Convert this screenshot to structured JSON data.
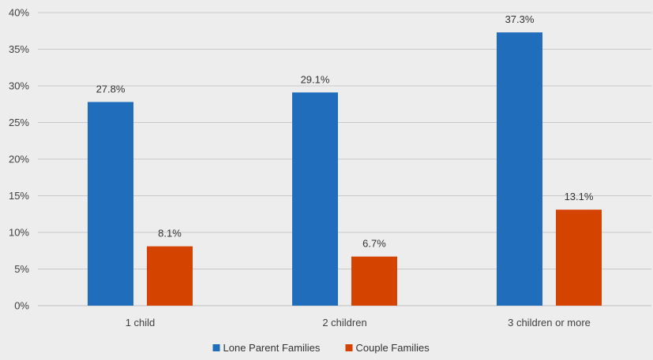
{
  "chart_data": {
    "type": "bar",
    "title": "",
    "xlabel": "",
    "ylabel": "",
    "categories": [
      "1 child",
      "2 children",
      "3 children or more"
    ],
    "series": [
      {
        "name": "Lone Parent Families",
        "values": [
          27.8,
          29.1,
          37.3
        ],
        "color": "#1f6dbb",
        "labels": [
          "27.8%",
          "29.1%",
          "37.3%"
        ]
      },
      {
        "name": "Couple Families",
        "values": [
          8.1,
          6.7,
          13.1
        ],
        "color": "#d44400",
        "labels": [
          "8.1%",
          "6.7%",
          "13.1%"
        ]
      }
    ],
    "ylim": [
      0,
      40
    ],
    "yticks": [
      "0%",
      "5%",
      "10%",
      "15%",
      "20%",
      "25%",
      "30%",
      "35%",
      "40%"
    ],
    "grid": true,
    "legend": "bottom"
  }
}
